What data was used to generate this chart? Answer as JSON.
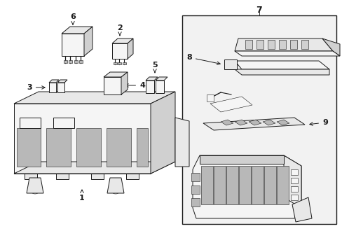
{
  "bg_color": "#ffffff",
  "lc": "#1a1a1a",
  "fill_light": "#f5f5f5",
  "fill_mid": "#e8e8e8",
  "fill_dark": "#d0d0d0",
  "fill_darker": "#b8b8b8",
  "figure_width": 4.89,
  "figure_height": 3.6,
  "dpi": 100,
  "lw_main": 0.7,
  "lw_thin": 0.4,
  "lw_label": 0.6
}
